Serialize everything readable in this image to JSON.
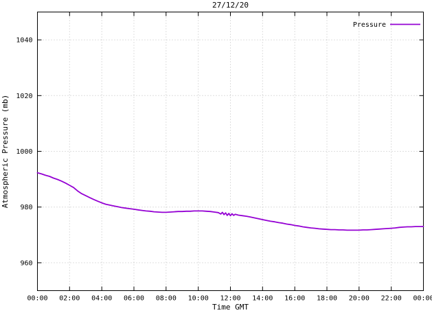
{
  "chart": {
    "title": "27/12/20",
    "ylabel": "Atmospheric Pressure (mb)",
    "xlabel": "Time GMT",
    "legend_label": "Pressure",
    "line_color": "#9400d3"
  },
  "chart_data": {
    "type": "line",
    "title": "27/12/20",
    "xlabel": "Time GMT",
    "ylabel": "Atmospheric Pressure (mb)",
    "xlim": [
      0,
      24
    ],
    "ylim": [
      950,
      1050
    ],
    "grid": true,
    "legend_position": "top-right",
    "x_ticks": [
      {
        "value": 0,
        "label": "00:00"
      },
      {
        "value": 2,
        "label": "02:00"
      },
      {
        "value": 4,
        "label": "04:00"
      },
      {
        "value": 6,
        "label": "06:00"
      },
      {
        "value": 8,
        "label": "08:00"
      },
      {
        "value": 10,
        "label": "10:00"
      },
      {
        "value": 12,
        "label": "12:00"
      },
      {
        "value": 14,
        "label": "14:00"
      },
      {
        "value": 16,
        "label": "16:00"
      },
      {
        "value": 18,
        "label": "18:00"
      },
      {
        "value": 20,
        "label": "20:00"
      },
      {
        "value": 22,
        "label": "22:00"
      },
      {
        "value": 24,
        "label": "00:00"
      }
    ],
    "y_ticks": [
      {
        "value": 960,
        "label": "960"
      },
      {
        "value": 980,
        "label": "980"
      },
      {
        "value": 1000,
        "label": "1000"
      },
      {
        "value": 1020,
        "label": "1020"
      },
      {
        "value": 1040,
        "label": "1040"
      }
    ],
    "series": [
      {
        "name": "Pressure",
        "color": "#9400d3",
        "points": [
          [
            0,
            992.3
          ],
          [
            0.25,
            991.9
          ],
          [
            0.5,
            991.4
          ],
          [
            0.75,
            991.0
          ],
          [
            1,
            990.4
          ],
          [
            1.25,
            989.9
          ],
          [
            1.5,
            989.3
          ],
          [
            1.75,
            988.6
          ],
          [
            2,
            987.8
          ],
          [
            2.25,
            987.0
          ],
          [
            2.5,
            985.8
          ],
          [
            2.75,
            984.8
          ],
          [
            3,
            984.1
          ],
          [
            3.25,
            983.4
          ],
          [
            3.5,
            982.7
          ],
          [
            3.75,
            982.1
          ],
          [
            4,
            981.5
          ],
          [
            4.25,
            981.0
          ],
          [
            4.5,
            980.7
          ],
          [
            4.75,
            980.4
          ],
          [
            5,
            980.1
          ],
          [
            5.25,
            979.8
          ],
          [
            5.5,
            979.6
          ],
          [
            5.75,
            979.4
          ],
          [
            6,
            979.2
          ],
          [
            6.25,
            979.0
          ],
          [
            6.5,
            978.8
          ],
          [
            6.75,
            978.6
          ],
          [
            7,
            978.5
          ],
          [
            7.25,
            978.3
          ],
          [
            7.5,
            978.2
          ],
          [
            7.75,
            978.1
          ],
          [
            8,
            978.1
          ],
          [
            8.25,
            978.2
          ],
          [
            8.5,
            978.3
          ],
          [
            8.75,
            978.4
          ],
          [
            9,
            978.4
          ],
          [
            9.25,
            978.5
          ],
          [
            9.5,
            978.5
          ],
          [
            9.75,
            978.6
          ],
          [
            10,
            978.6
          ],
          [
            10.25,
            978.6
          ],
          [
            10.5,
            978.5
          ],
          [
            10.75,
            978.4
          ],
          [
            11,
            978.2
          ],
          [
            11.25,
            978.0
          ],
          [
            11.4,
            977.5
          ],
          [
            11.5,
            978.1
          ],
          [
            11.6,
            977.3
          ],
          [
            11.7,
            977.9
          ],
          [
            11.8,
            977.0
          ],
          [
            11.9,
            977.7
          ],
          [
            12,
            976.9
          ],
          [
            12.1,
            977.6
          ],
          [
            12.2,
            977.0
          ],
          [
            12.3,
            977.4
          ],
          [
            12.5,
            977.1
          ],
          [
            12.75,
            976.9
          ],
          [
            13,
            976.7
          ],
          [
            13.25,
            976.4
          ],
          [
            13.5,
            976.1
          ],
          [
            13.75,
            975.8
          ],
          [
            14,
            975.5
          ],
          [
            14.25,
            975.2
          ],
          [
            14.5,
            974.9
          ],
          [
            14.75,
            974.7
          ],
          [
            15,
            974.4
          ],
          [
            15.25,
            974.2
          ],
          [
            15.5,
            973.9
          ],
          [
            15.75,
            973.7
          ],
          [
            16,
            973.4
          ],
          [
            16.25,
            973.2
          ],
          [
            16.5,
            972.9
          ],
          [
            16.75,
            972.7
          ],
          [
            17,
            972.5
          ],
          [
            17.25,
            972.4
          ],
          [
            17.5,
            972.2
          ],
          [
            17.75,
            972.1
          ],
          [
            18,
            972.0
          ],
          [
            18.25,
            971.9
          ],
          [
            18.5,
            971.9
          ],
          [
            18.75,
            971.8
          ],
          [
            19,
            971.8
          ],
          [
            19.25,
            971.7
          ],
          [
            19.5,
            971.7
          ],
          [
            19.75,
            971.7
          ],
          [
            20,
            971.7
          ],
          [
            20.25,
            971.8
          ],
          [
            20.5,
            971.8
          ],
          [
            20.75,
            971.9
          ],
          [
            21,
            972.0
          ],
          [
            21.25,
            972.1
          ],
          [
            21.5,
            972.2
          ],
          [
            21.75,
            972.3
          ],
          [
            22,
            972.4
          ],
          [
            22.25,
            972.5
          ],
          [
            22.5,
            972.7
          ],
          [
            22.75,
            972.8
          ],
          [
            23,
            972.9
          ],
          [
            23.25,
            972.9
          ],
          [
            23.5,
            973.0
          ],
          [
            23.75,
            973.0
          ],
          [
            24,
            973.0
          ]
        ]
      }
    ]
  }
}
